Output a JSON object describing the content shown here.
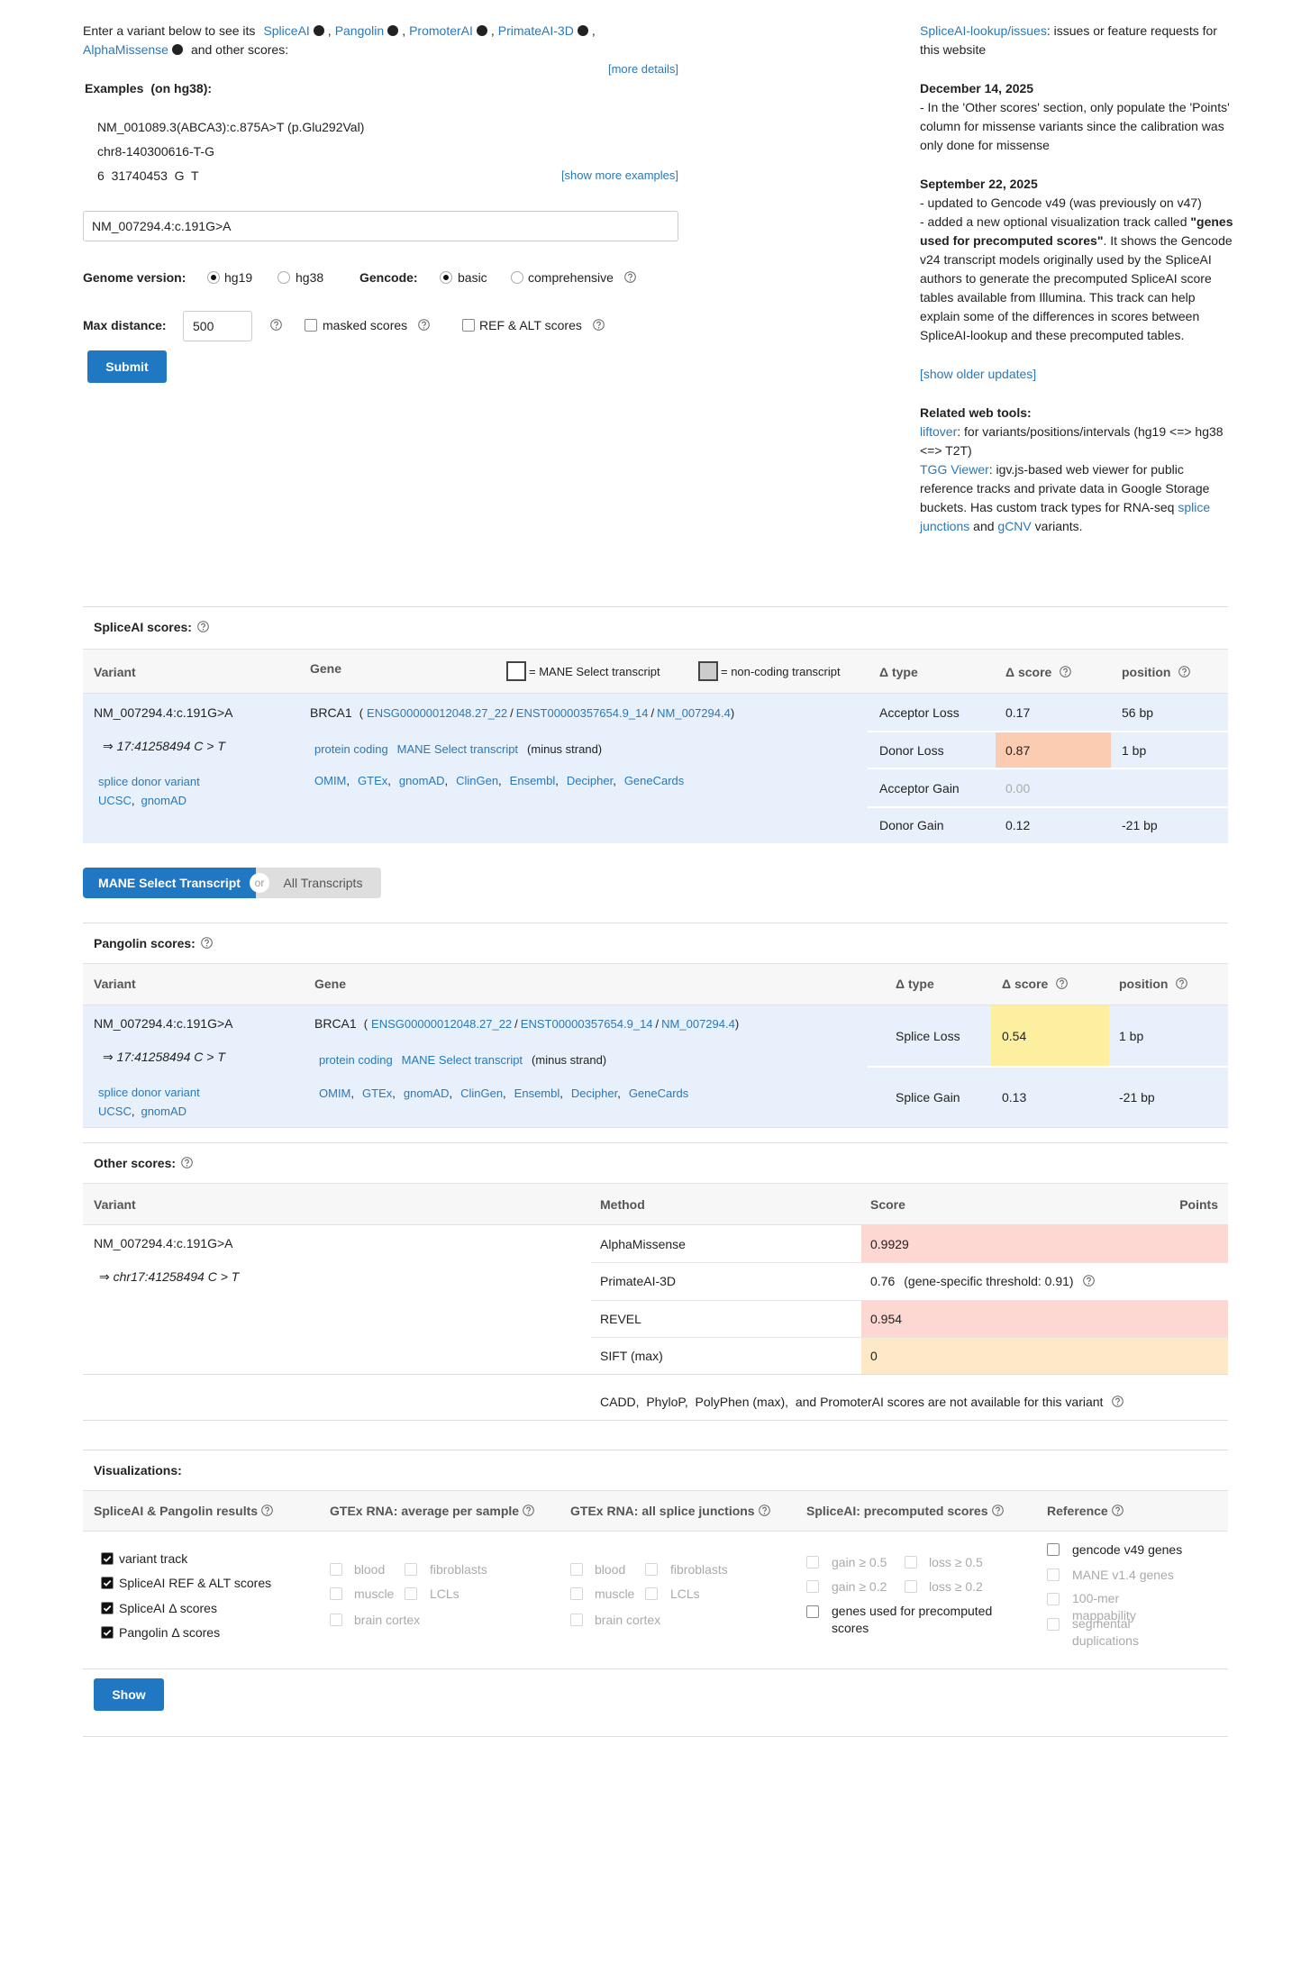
{
  "punct": {
    "open": "(",
    "slash": "/",
    "close": ")",
    "comma": ","
  },
  "intro": {
    "lead": "Enter a variant below to see its",
    "tools": [
      "SpliceAI",
      "Pangolin",
      "PromoterAI",
      "PrimateAI-3D",
      "AlphaMissense"
    ],
    "tail": "and other scores:",
    "more_details": "[more details]"
  },
  "examples": {
    "label": "Examples",
    "label_note": "(on hg38):",
    "items": [
      "NM_001089.3(ABCA3):c.875A>T (p.Glu292Val)",
      "chr8-140300616-T-G",
      "6  31740453  G  T"
    ],
    "show_more": "[show more examples]"
  },
  "form": {
    "variant": "NM_007294.4:c.191G>A",
    "genome_label": "Genome version:",
    "genomes": [
      {
        "label": "hg19",
        "checked": true
      },
      {
        "label": "hg38",
        "checked": false
      }
    ],
    "gencode_label": "Gencode:",
    "gencodes": [
      {
        "label": "basic",
        "checked": true
      },
      {
        "label": "comprehensive",
        "checked": false
      }
    ],
    "max_distance_label": "Max distance:",
    "max_distance": "500",
    "masked_scores": "masked scores",
    "ref_alt_scores": "REF & ALT scores",
    "submit": "Submit"
  },
  "sidebar": {
    "issues_link": "SpliceAI-lookup/issues",
    "issues_text": ": issues or feature requests for this website",
    "updates": [
      {
        "date": "December 14, 2025",
        "text": "- In the 'Other scores' section, only populate the 'Points' column for missense variants since the calibration was only done for missense"
      },
      {
        "date": "September 22, 2025",
        "text": "- updated to Gencode v49 (was previously on v47)",
        "text2_before": "- added a new optional visualization track called ",
        "text2_bold": "\"genes used for precomputed scores\"",
        "text2_after": ". It shows the Gencode v24 transcript models originally used by the SpliceAI authors to generate the precomputed SpliceAI score tables available from Illumina. This track can help explain some of the differences in scores between SpliceAI-lookup and these precomputed tables."
      }
    ],
    "show_older": "[show older updates]",
    "related_title": "Related web tools:",
    "liftover": "liftover",
    "liftover_text": ": for variants/positions/intervals (hg19 <=> hg38 <=> T2T)",
    "tgg": "TGG Viewer",
    "tgg_text": ": igv.js-based web viewer for public reference tracks and private data in Google Storage buckets. Has custom track types for RNA-seq ",
    "splice_junctions": "splice junctions",
    "and": " and ",
    "gcnv": "gCNV",
    "variants": " variants."
  },
  "spliceai": {
    "title": "SpliceAI scores:",
    "headers": {
      "variant": "Variant",
      "gene": "Gene",
      "mane_legend": "= MANE Select transcript",
      "noncoding_legend": "= non-coding transcript",
      "delta_type": "Δ type",
      "delta_score": "Δ score",
      "position": "position"
    },
    "variant": "NM_007294.4:c.191G>A",
    "coords": "⇒ 17:41258494 C > T",
    "consequence": "splice donor variant",
    "variant_links": [
      "UCSC",
      "gnomAD"
    ],
    "gene": "BRCA1",
    "transcripts": [
      "ENSG00000012048.27_22",
      "ENST00000357654.9_14",
      "NM_007294.4"
    ],
    "biotype": "protein coding",
    "transcript_tag": "MANE Select transcript",
    "strand": "(minus strand)",
    "gene_links": [
      "OMIM",
      "GTEx",
      "gnomAD",
      "ClinGen",
      "Ensembl",
      "Decipher",
      "GeneCards"
    ],
    "rows": [
      {
        "type": "Acceptor Loss",
        "score": "0.17",
        "position": "56 bp"
      },
      {
        "type": "Donor Loss",
        "score": "0.87",
        "position": "1 bp",
        "highlight": "#fbcbb2"
      },
      {
        "type": "Acceptor Gain",
        "score": "0.00",
        "position": null,
        "muted": true
      },
      {
        "type": "Donor Gain",
        "score": "0.12",
        "position": "-21 bp"
      }
    ]
  },
  "toggle": {
    "active": "MANE Select Transcript",
    "or": "or",
    "inactive": "All Transcripts"
  },
  "pangolin": {
    "title": "Pangolin scores:",
    "headers": {
      "variant": "Variant",
      "gene": "Gene",
      "delta_type": "Δ type",
      "delta_score": "Δ score",
      "position": "position"
    },
    "variant": "NM_007294.4:c.191G>A",
    "coords": "⇒ 17:41258494 C > T",
    "consequence": "splice donor variant",
    "variant_links": [
      "UCSC",
      "gnomAD"
    ],
    "gene": "BRCA1",
    "transcripts": [
      "ENSG00000012048.27_22",
      "ENST00000357654.9_14",
      "NM_007294.4"
    ],
    "biotype": "protein coding",
    "transcript_tag": "MANE Select transcript",
    "strand": "(minus strand)",
    "gene_links": [
      "OMIM",
      "GTEx",
      "gnomAD",
      "ClinGen",
      "Ensembl",
      "Decipher",
      "GeneCards"
    ],
    "rows": [
      {
        "type": "Splice Loss",
        "score": "0.54",
        "position": "1 bp",
        "highlight": "#fcf0a0"
      },
      {
        "type": "Splice Gain",
        "score": "0.13",
        "position": "-21 bp"
      }
    ]
  },
  "other": {
    "title": "Other scores:",
    "headers": {
      "variant": "Variant",
      "method": "Method",
      "score": "Score",
      "points": "Points"
    },
    "variant": "NM_007294.4:c.191G>A",
    "coords": "⇒ chr17:41258494 C > T",
    "rows": [
      {
        "method": "AlphaMissense",
        "score": "0.9929",
        "highlight": "#fdd7d1"
      },
      {
        "method": "PrimateAI-3D",
        "score": "0.76",
        "note": "(gene-specific threshold: 0.91)"
      },
      {
        "method": "REVEL",
        "score": "0.954",
        "highlight": "#fdd7d1"
      },
      {
        "method": "SIFT (max)",
        "score": "0",
        "highlight": "#fde9c8"
      }
    ],
    "unavailable": "CADD,  PhyloP,  PolyPhen (max),  and PromoterAI scores are not available for this variant"
  },
  "viz": {
    "title": "Visualizations:",
    "columns": [
      {
        "title": "SpliceAI & Pangolin results",
        "options": [
          {
            "label": "variant track",
            "checked": true,
            "enabled": true
          },
          {
            "label": "SpliceAI REF & ALT scores",
            "checked": true,
            "enabled": true
          },
          {
            "label": "SpliceAI Δ scores",
            "checked": true,
            "enabled": true
          },
          {
            "label": "Pangolin Δ scores",
            "checked": true,
            "enabled": true
          }
        ]
      },
      {
        "title": "GTEx RNA: average per sample",
        "options": [
          {
            "label": "blood",
            "checked": false,
            "enabled": false
          },
          {
            "label": "fibroblasts",
            "checked": false,
            "enabled": false
          },
          {
            "label": "muscle",
            "checked": false,
            "enabled": false
          },
          {
            "label": "LCLs",
            "checked": false,
            "enabled": false
          },
          {
            "label": "brain cortex",
            "checked": false,
            "enabled": false
          }
        ]
      },
      {
        "title": "GTEx RNA: all splice junctions",
        "options": [
          {
            "label": "blood",
            "checked": false,
            "enabled": false
          },
          {
            "label": "fibroblasts",
            "checked": false,
            "enabled": false
          },
          {
            "label": "muscle",
            "checked": false,
            "enabled": false
          },
          {
            "label": "LCLs",
            "checked": false,
            "enabled": false
          },
          {
            "label": "brain cortex",
            "checked": false,
            "enabled": false
          }
        ]
      },
      {
        "title": "SpliceAI: precomputed scores",
        "options": [
          {
            "label": "gain ≥ 0.5",
            "checked": false,
            "enabled": false
          },
          {
            "label": "loss ≥ 0.5",
            "checked": false,
            "enabled": false
          },
          {
            "label": "gain ≥ 0.2",
            "checked": false,
            "enabled": false
          },
          {
            "label": "loss ≥ 0.2",
            "checked": false,
            "enabled": false
          },
          {
            "label": "genes used for precomputed scores",
            "checked": false,
            "enabled": true
          }
        ]
      },
      {
        "title": "Reference",
        "options": [
          {
            "label": "gencode v49 genes",
            "checked": false,
            "enabled": true
          },
          {
            "label": "MANE v1.4 genes",
            "checked": false,
            "enabled": false
          },
          {
            "label": "100-mer mappability",
            "checked": false,
            "enabled": false
          },
          {
            "label": "segmental duplications",
            "checked": false,
            "enabled": false
          }
        ]
      }
    ],
    "show": "Show"
  }
}
